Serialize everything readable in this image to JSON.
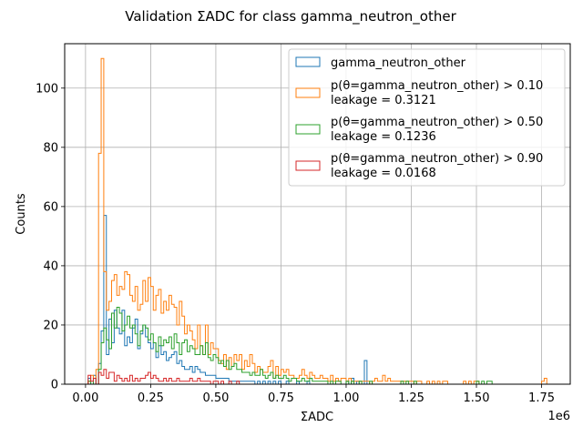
{
  "chart_data": {
    "type": "histogram",
    "title": "Validation ΣADC for class gamma_neutron_other",
    "xlabel": "ΣADC",
    "ylabel": "Counts",
    "x_offset_label": "1e6",
    "xlim": [
      -0.08,
      1.86
    ],
    "ylim": [
      0,
      115
    ],
    "x_ticks": [
      0,
      0.25,
      0.5,
      0.75,
      1.0,
      1.25,
      1.5,
      1.75
    ],
    "x_tick_labels": [
      "0.00",
      "0.25",
      "0.50",
      "0.75",
      "1.00",
      "1.25",
      "1.50",
      "1.75"
    ],
    "y_ticks": [
      0,
      20,
      40,
      60,
      80,
      100
    ],
    "y_tick_labels": [
      "0",
      "20",
      "40",
      "60",
      "80",
      "100"
    ],
    "grid": true,
    "legend_position": "top-right",
    "bin_edges_start": 0.0,
    "bin_width": 0.01,
    "series": [
      {
        "name": "gamma_neutron_other",
        "leakage": "",
        "color": "#1f77b4",
        "values": [
          0,
          2,
          0,
          3,
          0,
          7,
          18,
          57,
          10,
          22,
          14,
          25,
          19,
          17,
          25,
          13,
          16,
          14,
          19,
          22,
          12,
          17,
          20,
          16,
          14,
          12,
          14,
          9,
          13,
          10,
          11,
          8,
          9,
          10,
          11,
          7,
          8,
          6,
          5,
          5,
          6,
          4,
          6,
          5,
          4,
          4,
          3,
          3,
          3,
          3,
          2,
          2,
          2,
          2,
          2,
          1,
          1,
          1,
          1,
          1,
          1,
          1,
          1,
          1,
          1,
          0,
          1,
          0,
          1,
          0,
          1,
          0,
          1,
          0,
          1,
          0,
          0,
          1,
          0,
          0,
          0,
          1,
          0,
          0,
          0,
          1,
          0,
          0,
          0,
          0,
          0,
          0,
          0,
          0,
          0,
          0,
          0,
          0,
          0,
          0,
          1,
          0,
          2,
          0,
          1,
          0,
          0,
          8,
          0,
          0,
          0,
          0,
          0,
          0,
          0,
          0,
          0,
          0,
          0,
          0,
          0,
          0,
          0,
          0,
          0,
          0,
          0,
          0,
          0,
          0,
          0,
          0,
          0,
          0,
          0,
          0,
          0,
          0,
          0,
          0,
          0,
          0,
          0,
          0,
          0,
          0,
          0,
          0,
          0,
          0,
          0,
          0,
          0,
          0,
          0,
          0,
          0,
          0,
          0,
          0,
          0,
          0,
          0,
          0,
          0,
          0,
          0,
          0,
          0,
          0,
          0,
          0,
          0,
          0,
          0,
          0,
          0,
          0,
          0,
          0,
          0,
          0
        ]
      },
      {
        "name": "p(θ=gamma_neutron_other) > 0.10",
        "leakage": "leakage = 0.3121",
        "color": "#ff7f0e",
        "values": [
          0,
          1,
          3,
          2,
          5,
          78,
          110,
          38,
          25,
          28,
          35,
          37,
          30,
          33,
          32,
          38,
          37,
          30,
          28,
          33,
          25,
          27,
          35,
          28,
          36,
          33,
          25,
          30,
          32,
          24,
          28,
          25,
          30,
          27,
          26,
          20,
          28,
          23,
          17,
          20,
          18,
          15,
          12,
          20,
          13,
          10,
          20,
          10,
          14,
          12,
          12,
          8,
          7,
          10,
          5,
          9,
          6,
          10,
          8,
          10,
          5,
          8,
          6,
          10,
          7,
          4,
          6,
          5,
          4,
          4,
          6,
          8,
          2,
          6,
          3,
          5,
          4,
          5,
          3,
          3,
          2,
          2,
          3,
          5,
          3,
          2,
          4,
          3,
          2,
          2,
          3,
          2,
          2,
          1,
          3,
          1,
          2,
          1,
          2,
          2,
          1,
          2,
          1,
          1,
          1,
          1,
          1,
          1,
          1,
          0,
          1,
          2,
          1,
          1,
          3,
          1,
          2,
          1,
          1,
          1,
          1,
          1,
          1,
          1,
          1,
          1,
          0,
          1,
          1,
          0,
          0,
          1,
          0,
          1,
          0,
          1,
          0,
          1,
          1,
          0,
          0,
          0,
          0,
          0,
          0,
          1,
          0,
          1,
          0,
          1,
          1,
          0,
          0,
          0,
          0,
          0,
          0,
          0,
          0,
          0,
          0,
          0,
          0,
          0,
          0,
          0,
          0,
          0,
          0,
          0,
          0,
          0,
          0,
          0,
          0,
          1,
          2,
          0,
          0,
          0,
          0,
          0
        ]
      },
      {
        "name": "p(θ=gamma_neutron_other) > 0.50",
        "leakage": "leakage = 0.1236",
        "color": "#2ca02c",
        "values": [
          0,
          1,
          0,
          2,
          0,
          5,
          14,
          19,
          15,
          12,
          24,
          19,
          26,
          24,
          18,
          20,
          23,
          19,
          20,
          17,
          13,
          18,
          20,
          19,
          15,
          17,
          14,
          11,
          16,
          13,
          15,
          14,
          16,
          12,
          17,
          14,
          10,
          14,
          15,
          11,
          13,
          12,
          10,
          10,
          13,
          10,
          14,
          9,
          8,
          10,
          9,
          7,
          8,
          6,
          8,
          5,
          6,
          7,
          5,
          5,
          4,
          4,
          4,
          3,
          4,
          3,
          3,
          5,
          3,
          2,
          3,
          4,
          2,
          3,
          2,
          2,
          3,
          2,
          1,
          2,
          2,
          1,
          1,
          2,
          1,
          1,
          2,
          1,
          1,
          1,
          1,
          1,
          1,
          0,
          1,
          0,
          1,
          1,
          0,
          0,
          1,
          0,
          1,
          0,
          0,
          1,
          0,
          0,
          0,
          1,
          0,
          0,
          0,
          0,
          0,
          0,
          0,
          0,
          0,
          0,
          0,
          1,
          0,
          1,
          0,
          0,
          1,
          0,
          0,
          0,
          0,
          0,
          0,
          0,
          0,
          0,
          0,
          0,
          0,
          0,
          0,
          0,
          0,
          0,
          0,
          0,
          0,
          0,
          0,
          0,
          1,
          0,
          1,
          0,
          1,
          1,
          0,
          0,
          0,
          0,
          0,
          0,
          0,
          0,
          0,
          0,
          0,
          0,
          0,
          0,
          0,
          0,
          0,
          0,
          0,
          0,
          0,
          0,
          0,
          0,
          0,
          0
        ]
      },
      {
        "name": "p(θ=gamma_neutron_other) > 0.90",
        "leakage": "leakage = 0.0168",
        "color": "#d62728",
        "values": [
          0,
          3,
          1,
          2,
          0,
          4,
          3,
          5,
          2,
          4,
          4,
          1,
          3,
          2,
          1,
          2,
          1,
          3,
          1,
          2,
          1,
          2,
          2,
          3,
          4,
          2,
          3,
          2,
          1,
          1,
          2,
          1,
          2,
          1,
          1,
          2,
          1,
          1,
          1,
          1,
          2,
          1,
          1,
          2,
          1,
          1,
          1,
          1,
          0,
          1,
          1,
          0,
          1,
          0,
          0,
          1,
          0,
          0,
          1,
          0,
          0,
          0,
          0,
          0,
          0,
          0,
          0,
          0,
          0,
          0,
          0,
          0,
          0,
          0,
          0,
          0,
          0,
          0,
          0,
          0,
          0,
          0,
          0,
          0,
          0,
          0,
          0,
          0,
          0,
          0,
          0,
          0,
          0,
          0,
          0,
          0,
          0,
          0,
          0,
          0,
          0,
          0,
          0,
          0,
          0,
          0,
          0,
          0,
          0,
          0,
          0,
          0,
          0,
          0,
          0,
          0,
          0,
          0,
          0,
          0,
          0,
          0,
          0,
          0,
          0,
          0,
          0,
          0,
          0,
          0,
          0,
          0,
          0,
          0,
          0,
          0,
          0,
          0,
          0,
          0,
          0,
          0,
          0,
          0,
          0,
          0,
          0,
          0,
          0,
          0,
          0,
          0,
          0,
          0,
          0,
          0,
          0,
          0,
          0,
          0,
          0,
          0,
          0,
          0,
          0,
          0,
          0,
          0,
          0,
          0,
          0,
          0,
          0,
          0,
          0,
          0,
          0,
          0,
          0,
          0,
          0,
          0
        ]
      }
    ]
  }
}
